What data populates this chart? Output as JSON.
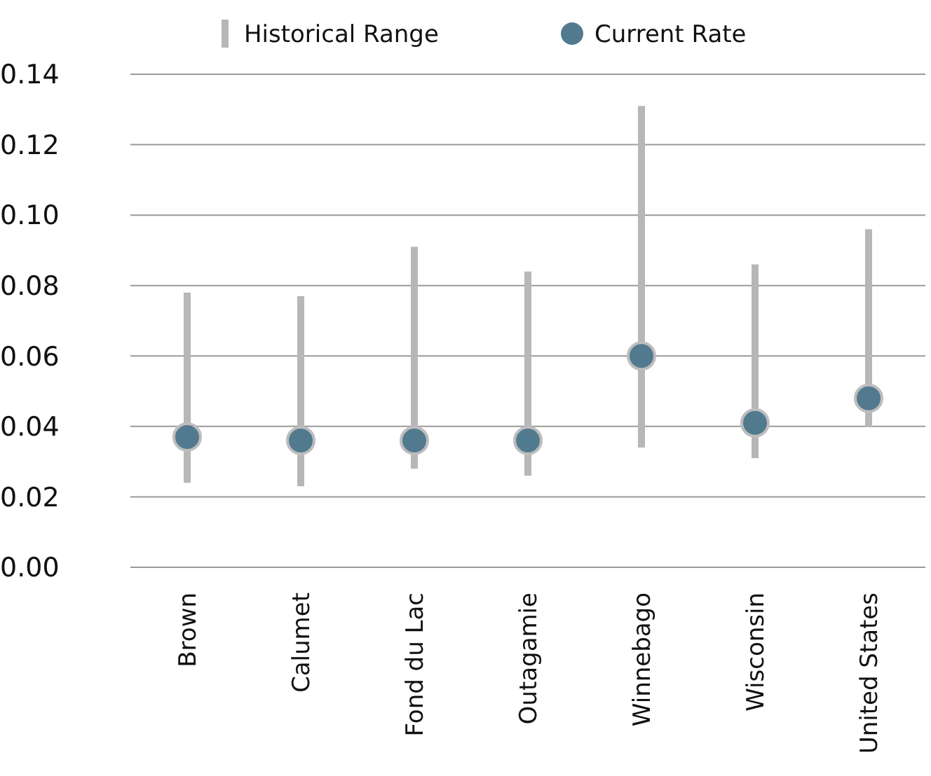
{
  "chart_data": {
    "type": "bar",
    "categories": [
      "Brown",
      "Calumet",
      "Fond du Lac",
      "Outagamie",
      "Winnebago",
      "Wisconsin",
      "United States"
    ],
    "series": [
      {
        "name": "Historical Range",
        "color": "#b7b7b7",
        "base": [
          0.024,
          0.023,
          0.028,
          0.026,
          0.034,
          0.031,
          0.04
        ],
        "values": [
          0.054,
          0.054,
          0.063,
          0.058,
          0.097,
          0.055,
          0.056
        ]
      },
      {
        "name": "Current Rate",
        "type": "scatter",
        "color": "#527a8f",
        "values": [
          0.037,
          0.036,
          0.036,
          0.036,
          0.06,
          0.041,
          0.048
        ]
      }
    ],
    "ylim": [
      0,
      0.14
    ],
    "yticks": [
      {
        "value": 0,
        "label": "0.00"
      },
      {
        "value": 0.02,
        "label": "0.02"
      },
      {
        "value": 0.04,
        "label": "0.04"
      },
      {
        "value": 0.06,
        "label": "0.06"
      },
      {
        "value": 0.08,
        "label": "0.08"
      },
      {
        "value": 0.1,
        "label": "0.10"
      },
      {
        "value": 0.12,
        "label": "0.12"
      },
      {
        "value": 0.14,
        "label": "0.14"
      }
    ],
    "grid": "y",
    "legend": "top",
    "marker": "circle"
  }
}
